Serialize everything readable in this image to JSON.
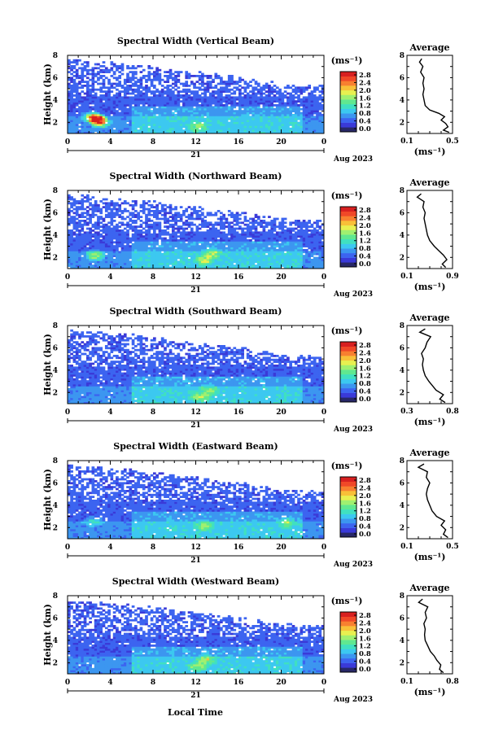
{
  "chart_data": {
    "type": "heatmap",
    "colorbar": {
      "unit": "(ms⁻¹)",
      "colors": [
        "#282868",
        "#3a3ad8",
        "#3c64f0",
        "#3c96f0",
        "#3cc8f0",
        "#40e0c0",
        "#60e890",
        "#a0f070",
        "#e8f050",
        "#f8c038",
        "#f88030",
        "#f04828",
        "#d82020"
      ]
    },
    "x_axis": {
      "range": [
        0,
        24
      ],
      "ticks": [
        "0",
        "4",
        "8",
        "12",
        "16",
        "20",
        "0"
      ],
      "day_label": "21",
      "month_label": "Aug 2023",
      "xlabel": "Local Time"
    },
    "y_axis": {
      "label": "Height (km)",
      "range": [
        1,
        8
      ],
      "ticks": [
        "2",
        "4",
        "6",
        "8"
      ]
    },
    "average_axis": {
      "xlabel": "(ms⁻¹)"
    },
    "panels": [
      {
        "title": "Spectral Width (Vertical Beam)",
        "colorbar_ticks": [
          "2.8",
          "2.4",
          "2.0",
          "1.6",
          "1.2",
          "0.8",
          "0.4",
          "0.0"
        ],
        "avg_title": "Average",
        "avg_ticks": [
          "0.1",
          "0.5"
        ],
        "avg_xlim": [
          0.1,
          0.5
        ],
        "avg_profile": {
          "height": [
            1.1,
            1.3,
            1.6,
            1.9,
            2.2,
            2.5,
            2.8,
            3.1,
            3.5,
            4.0,
            4.5,
            5.0,
            5.5,
            6.0,
            6.5,
            7.0,
            7.4,
            7.7
          ],
          "value": [
            0.47,
            0.42,
            0.46,
            0.44,
            0.4,
            0.43,
            0.38,
            0.3,
            0.26,
            0.25,
            0.24,
            0.25,
            0.24,
            0.25,
            0.22,
            0.24,
            0.21,
            0.23
          ]
        },
        "hotspots": [
          [
            2.8,
            2.3,
            2.2
          ],
          [
            2.2,
            2.5,
            1.6
          ],
          [
            3.1,
            2.0,
            1.6
          ],
          [
            12.3,
            1.6,
            0.9
          ]
        ]
      },
      {
        "title": "Spectral Width (Northward Beam)",
        "colorbar_ticks": [
          "2.8",
          "2.4",
          "2.0",
          "1.6",
          "1.2",
          "0.8",
          "0.4",
          "0.0"
        ],
        "avg_title": "Average",
        "avg_ticks": [
          "0.1",
          "0.9"
        ],
        "avg_xlim": [
          0.1,
          0.9
        ],
        "avg_profile": {
          "height": [
            1.1,
            1.4,
            1.8,
            2.2,
            2.6,
            3.0,
            3.5,
            4.0,
            4.5,
            5.0,
            5.5,
            6.0,
            6.5,
            7.0,
            7.4,
            7.7
          ],
          "value": [
            0.78,
            0.72,
            0.8,
            0.74,
            0.66,
            0.58,
            0.5,
            0.46,
            0.44,
            0.42,
            0.4,
            0.42,
            0.38,
            0.4,
            0.28,
            0.35
          ]
        },
        "hotspots": [
          [
            2.6,
            2.2,
            1.4
          ],
          [
            12.8,
            1.8,
            1.2
          ],
          [
            13.6,
            2.4,
            1.0
          ]
        ]
      },
      {
        "title": "Spectral Width (Southward Beam)",
        "colorbar_ticks": [
          "2.8",
          "2.4",
          "2.0",
          "1.6",
          "1.2",
          "0.8",
          "0.4",
          "0.0"
        ],
        "avg_title": "Average",
        "avg_ticks": [
          "0.3",
          "0.8"
        ],
        "avg_xlim": [
          0.3,
          0.8
        ],
        "avg_profile": {
          "height": [
            1.1,
            1.4,
            1.8,
            2.2,
            2.6,
            3.0,
            3.5,
            4.0,
            4.5,
            5.0,
            5.5,
            6.0,
            6.5,
            7.0,
            7.4,
            7.7
          ],
          "value": [
            0.72,
            0.66,
            0.7,
            0.62,
            0.58,
            0.54,
            0.5,
            0.48,
            0.47,
            0.48,
            0.46,
            0.5,
            0.52,
            0.56,
            0.44,
            0.5
          ]
        },
        "hotspots": [
          [
            12.4,
            1.6,
            1.0
          ],
          [
            13.3,
            2.2,
            0.8
          ]
        ]
      },
      {
        "title": "Spectral Width (Eastward Beam)",
        "colorbar_ticks": [
          "2.8",
          "2.4",
          "2.0",
          "1.6",
          "1.2",
          "0.8",
          "0.4",
          "0.0"
        ],
        "avg_title": "Average",
        "avg_ticks": [
          "0.1",
          "0.5"
        ],
        "avg_xlim": [
          0.1,
          0.5
        ],
        "avg_profile": {
          "height": [
            1.1,
            1.4,
            1.8,
            2.2,
            2.6,
            3.0,
            3.5,
            4.0,
            4.5,
            5.0,
            5.5,
            6.0,
            6.5,
            7.0,
            7.4,
            7.7
          ],
          "value": [
            0.46,
            0.42,
            0.44,
            0.4,
            0.43,
            0.36,
            0.32,
            0.3,
            0.28,
            0.27,
            0.28,
            0.3,
            0.27,
            0.28,
            0.2,
            0.25
          ]
        },
        "hotspots": [
          [
            12.8,
            2.2,
            0.9
          ],
          [
            20.5,
            2.5,
            0.8
          ],
          [
            2.4,
            2.6,
            0.7
          ]
        ]
      },
      {
        "title": "Spectral Width (Westward Beam)",
        "colorbar_ticks": [
          "2.8",
          "2.4",
          "2.0",
          "1.6",
          "1.2",
          "0.8",
          "0.4",
          "0.0"
        ],
        "avg_title": "Average",
        "avg_ticks": [
          "0.1",
          "0.8"
        ],
        "avg_xlim": [
          0.1,
          0.8
        ],
        "avg_profile": {
          "height": [
            1.1,
            1.4,
            1.8,
            2.2,
            2.6,
            3.0,
            3.5,
            4.0,
            4.5,
            5.0,
            5.5,
            6.0,
            6.5,
            7.0,
            7.4,
            7.7
          ],
          "value": [
            0.66,
            0.6,
            0.62,
            0.56,
            0.52,
            0.46,
            0.42,
            0.38,
            0.37,
            0.38,
            0.36,
            0.4,
            0.38,
            0.42,
            0.28,
            0.34
          ]
        },
        "hotspots": [
          [
            13.0,
            2.3,
            1.0
          ],
          [
            12.2,
            1.7,
            0.8
          ]
        ]
      }
    ]
  }
}
